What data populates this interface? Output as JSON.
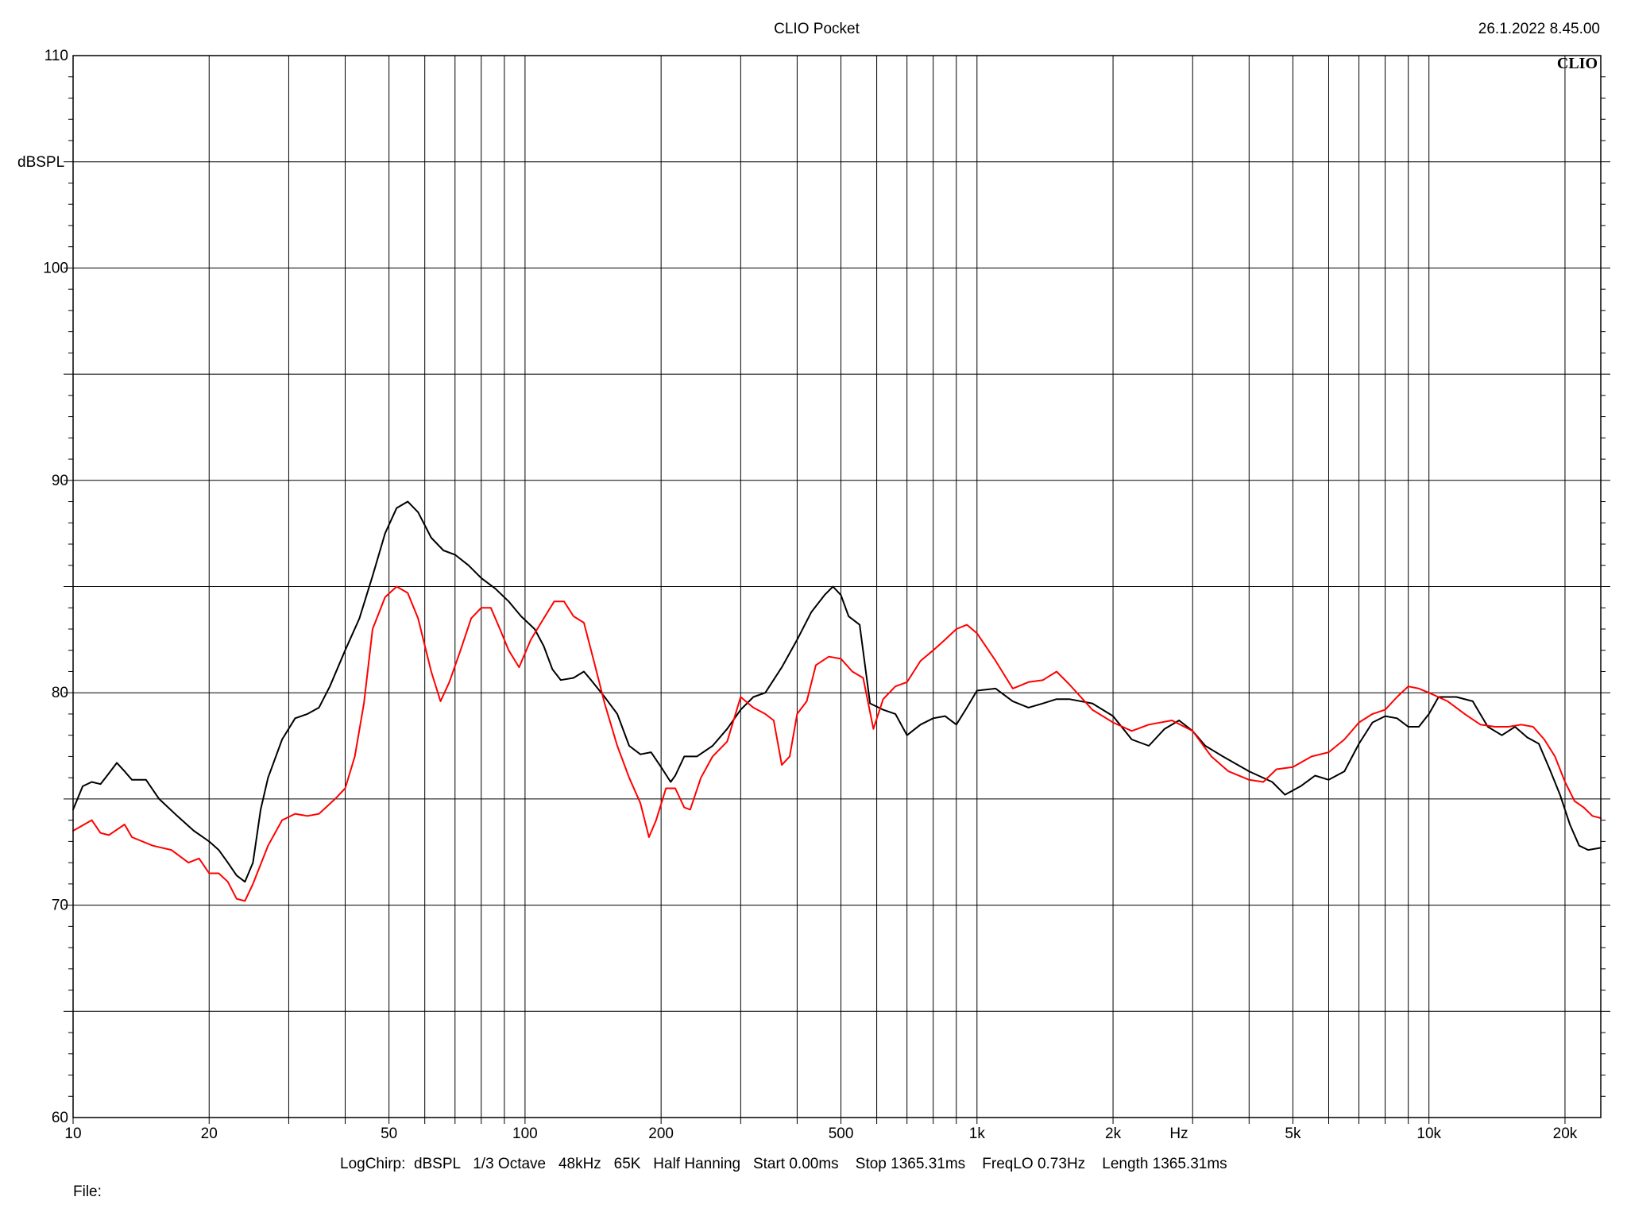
{
  "header": {
    "title": "CLIO Pocket",
    "timestamp": "26.1.2022 8.45.00",
    "logo": "CLIO"
  },
  "footer": {
    "settings": "LogChirp:  dBSPL   1/3 Octave   48kHz   65K   Half Hanning   Start 0.00ms    Stop 1365.31ms    FreqLO 0.73Hz    Length 1365.31ms",
    "file_label": "File:"
  },
  "chart_data": {
    "type": "line",
    "xscale": "log",
    "xlim": [
      10,
      24000
    ],
    "ylim": [
      60,
      110
    ],
    "ylabel": "dBSPL",
    "xunit": "Hz",
    "grid": true,
    "x_tick_labels": [
      {
        "value": 10,
        "label": "10"
      },
      {
        "value": 20,
        "label": "20"
      },
      {
        "value": 50,
        "label": "50"
      },
      {
        "value": 100,
        "label": "100"
      },
      {
        "value": 200,
        "label": "200"
      },
      {
        "value": 500,
        "label": "500"
      },
      {
        "value": 1000,
        "label": "1k"
      },
      {
        "value": 2000,
        "label": "2k"
      },
      {
        "value": 5000,
        "label": "5k"
      },
      {
        "value": 10000,
        "label": "10k"
      },
      {
        "value": 20000,
        "label": "20k"
      }
    ],
    "y_tick_labels": [
      {
        "value": 110,
        "label": "110"
      },
      {
        "value": 100,
        "label": "100"
      },
      {
        "value": 90,
        "label": "90"
      },
      {
        "value": 80,
        "label": "80"
      },
      {
        "value": 70,
        "label": "70"
      },
      {
        "value": 60,
        "label": "60"
      }
    ],
    "series": [
      {
        "color": "#000000",
        "points": [
          [
            10,
            74.5
          ],
          [
            10.5,
            75.6
          ],
          [
            11,
            75.8
          ],
          [
            11.5,
            75.7
          ],
          [
            12,
            76.2
          ],
          [
            12.5,
            76.7
          ],
          [
            13,
            76.3
          ],
          [
            13.5,
            75.9
          ],
          [
            14.5,
            75.9
          ],
          [
            15.5,
            75.0
          ],
          [
            17,
            74.2
          ],
          [
            18.5,
            73.5
          ],
          [
            20,
            73.0
          ],
          [
            21,
            72.6
          ],
          [
            22,
            72.0
          ],
          [
            23,
            71.4
          ],
          [
            24,
            71.1
          ],
          [
            25,
            72.0
          ],
          [
            26,
            74.5
          ],
          [
            27,
            76.0
          ],
          [
            29,
            77.8
          ],
          [
            31,
            78.8
          ],
          [
            33,
            79.0
          ],
          [
            35,
            79.3
          ],
          [
            37,
            80.3
          ],
          [
            40,
            82.0
          ],
          [
            43,
            83.5
          ],
          [
            46,
            85.5
          ],
          [
            49,
            87.5
          ],
          [
            52,
            88.7
          ],
          [
            55,
            89.0
          ],
          [
            58,
            88.5
          ],
          [
            62,
            87.3
          ],
          [
            66,
            86.7
          ],
          [
            70,
            86.5
          ],
          [
            75,
            86.0
          ],
          [
            80,
            85.4
          ],
          [
            86,
            84.9
          ],
          [
            92,
            84.3
          ],
          [
            98,
            83.6
          ],
          [
            105,
            83.0
          ],
          [
            110,
            82.2
          ],
          [
            115,
            81.1
          ],
          [
            120,
            80.6
          ],
          [
            128,
            80.7
          ],
          [
            135,
            81.0
          ],
          [
            140,
            80.6
          ],
          [
            150,
            79.8
          ],
          [
            160,
            79.0
          ],
          [
            170,
            77.5
          ],
          [
            180,
            77.1
          ],
          [
            190,
            77.2
          ],
          [
            200,
            76.5
          ],
          [
            210,
            75.8
          ],
          [
            215,
            76.1
          ],
          [
            225,
            77.0
          ],
          [
            240,
            77.0
          ],
          [
            260,
            77.5
          ],
          [
            280,
            78.3
          ],
          [
            300,
            79.2
          ],
          [
            320,
            79.8
          ],
          [
            340,
            80.0
          ],
          [
            370,
            81.2
          ],
          [
            400,
            82.5
          ],
          [
            430,
            83.8
          ],
          [
            460,
            84.6
          ],
          [
            480,
            85.0
          ],
          [
            500,
            84.6
          ],
          [
            520,
            83.6
          ],
          [
            550,
            83.2
          ],
          [
            580,
            79.5
          ],
          [
            620,
            79.2
          ],
          [
            660,
            79.0
          ],
          [
            700,
            78.0
          ],
          [
            750,
            78.5
          ],
          [
            800,
            78.8
          ],
          [
            850,
            78.9
          ],
          [
            900,
            78.5
          ],
          [
            950,
            79.3
          ],
          [
            1000,
            80.1
          ],
          [
            1100,
            80.2
          ],
          [
            1200,
            79.6
          ],
          [
            1300,
            79.3
          ],
          [
            1400,
            79.5
          ],
          [
            1500,
            79.7
          ],
          [
            1600,
            79.7
          ],
          [
            1800,
            79.5
          ],
          [
            2000,
            78.9
          ],
          [
            2200,
            77.8
          ],
          [
            2400,
            77.5
          ],
          [
            2600,
            78.3
          ],
          [
            2800,
            78.7
          ],
          [
            3000,
            78.2
          ],
          [
            3200,
            77.5
          ],
          [
            3500,
            77.0
          ],
          [
            4000,
            76.3
          ],
          [
            4500,
            75.8
          ],
          [
            4800,
            75.2
          ],
          [
            5200,
            75.6
          ],
          [
            5600,
            76.1
          ],
          [
            6000,
            75.9
          ],
          [
            6500,
            76.3
          ],
          [
            7000,
            77.6
          ],
          [
            7500,
            78.6
          ],
          [
            8000,
            78.9
          ],
          [
            8500,
            78.8
          ],
          [
            9000,
            78.4
          ],
          [
            9500,
            78.4
          ],
          [
            10000,
            79.0
          ],
          [
            10500,
            79.8
          ],
          [
            11500,
            79.8
          ],
          [
            12500,
            79.6
          ],
          [
            13500,
            78.4
          ],
          [
            14500,
            78.0
          ],
          [
            15500,
            78.4
          ],
          [
            16500,
            77.9
          ],
          [
            17500,
            77.6
          ],
          [
            18500,
            76.4
          ],
          [
            19500,
            75.2
          ],
          [
            20500,
            73.8
          ],
          [
            21500,
            72.8
          ],
          [
            22500,
            72.6
          ],
          [
            24000,
            72.7
          ]
        ]
      },
      {
        "color": "#ff0000",
        "points": [
          [
            10,
            73.5
          ],
          [
            11,
            74.0
          ],
          [
            11.5,
            73.4
          ],
          [
            12,
            73.3
          ],
          [
            13,
            73.8
          ],
          [
            13.5,
            73.2
          ],
          [
            15,
            72.8
          ],
          [
            16.5,
            72.6
          ],
          [
            18,
            72.0
          ],
          [
            19,
            72.2
          ],
          [
            20,
            71.5
          ],
          [
            21,
            71.5
          ],
          [
            22,
            71.1
          ],
          [
            23,
            70.3
          ],
          [
            24,
            70.2
          ],
          [
            25,
            71.0
          ],
          [
            27,
            72.8
          ],
          [
            29,
            74.0
          ],
          [
            31,
            74.3
          ],
          [
            33,
            74.2
          ],
          [
            35,
            74.3
          ],
          [
            38,
            75.0
          ],
          [
            40,
            75.5
          ],
          [
            42,
            77.0
          ],
          [
            44,
            79.5
          ],
          [
            46,
            83.0
          ],
          [
            49,
            84.5
          ],
          [
            52,
            85.0
          ],
          [
            55,
            84.7
          ],
          [
            58,
            83.5
          ],
          [
            62,
            81.0
          ],
          [
            65,
            79.6
          ],
          [
            68,
            80.5
          ],
          [
            72,
            82.0
          ],
          [
            76,
            83.5
          ],
          [
            80,
            84.0
          ],
          [
            84,
            84.0
          ],
          [
            88,
            83.0
          ],
          [
            92,
            82.0
          ],
          [
            97,
            81.2
          ],
          [
            103,
            82.5
          ],
          [
            110,
            83.5
          ],
          [
            116,
            84.3
          ],
          [
            122,
            84.3
          ],
          [
            128,
            83.6
          ],
          [
            135,
            83.3
          ],
          [
            142,
            81.5
          ],
          [
            150,
            79.5
          ],
          [
            160,
            77.5
          ],
          [
            170,
            76.0
          ],
          [
            180,
            74.8
          ],
          [
            188,
            73.2
          ],
          [
            195,
            74.0
          ],
          [
            205,
            75.5
          ],
          [
            215,
            75.5
          ],
          [
            225,
            74.6
          ],
          [
            232,
            74.5
          ],
          [
            245,
            76.0
          ],
          [
            260,
            77.0
          ],
          [
            280,
            77.7
          ],
          [
            300,
            79.8
          ],
          [
            320,
            79.3
          ],
          [
            340,
            79.0
          ],
          [
            355,
            78.7
          ],
          [
            370,
            76.6
          ],
          [
            385,
            77.0
          ],
          [
            400,
            79.0
          ],
          [
            420,
            79.6
          ],
          [
            440,
            81.3
          ],
          [
            470,
            81.7
          ],
          [
            500,
            81.6
          ],
          [
            530,
            81.0
          ],
          [
            560,
            80.7
          ],
          [
            590,
            78.3
          ],
          [
            620,
            79.7
          ],
          [
            660,
            80.3
          ],
          [
            700,
            80.5
          ],
          [
            750,
            81.5
          ],
          [
            800,
            82.0
          ],
          [
            850,
            82.5
          ],
          [
            900,
            83.0
          ],
          [
            950,
            83.2
          ],
          [
            1000,
            82.8
          ],
          [
            1100,
            81.5
          ],
          [
            1200,
            80.2
          ],
          [
            1300,
            80.5
          ],
          [
            1400,
            80.6
          ],
          [
            1500,
            81.0
          ],
          [
            1600,
            80.4
          ],
          [
            1800,
            79.2
          ],
          [
            2000,
            78.6
          ],
          [
            2200,
            78.2
          ],
          [
            2400,
            78.5
          ],
          [
            2700,
            78.7
          ],
          [
            3000,
            78.2
          ],
          [
            3300,
            77.0
          ],
          [
            3600,
            76.3
          ],
          [
            4000,
            75.9
          ],
          [
            4300,
            75.8
          ],
          [
            4600,
            76.4
          ],
          [
            5000,
            76.5
          ],
          [
            5500,
            77.0
          ],
          [
            6000,
            77.2
          ],
          [
            6500,
            77.8
          ],
          [
            7000,
            78.6
          ],
          [
            7500,
            79.0
          ],
          [
            8000,
            79.2
          ],
          [
            8500,
            79.8
          ],
          [
            9000,
            80.3
          ],
          [
            9500,
            80.2
          ],
          [
            10000,
            80.0
          ],
          [
            11000,
            79.6
          ],
          [
            12000,
            79.0
          ],
          [
            13000,
            78.5
          ],
          [
            14000,
            78.4
          ],
          [
            15000,
            78.4
          ],
          [
            16000,
            78.5
          ],
          [
            17000,
            78.4
          ],
          [
            18000,
            77.8
          ],
          [
            19000,
            77.0
          ],
          [
            20000,
            75.8
          ],
          [
            21000,
            74.9
          ],
          [
            22000,
            74.6
          ],
          [
            23000,
            74.2
          ],
          [
            24000,
            74.1
          ]
        ]
      }
    ]
  }
}
